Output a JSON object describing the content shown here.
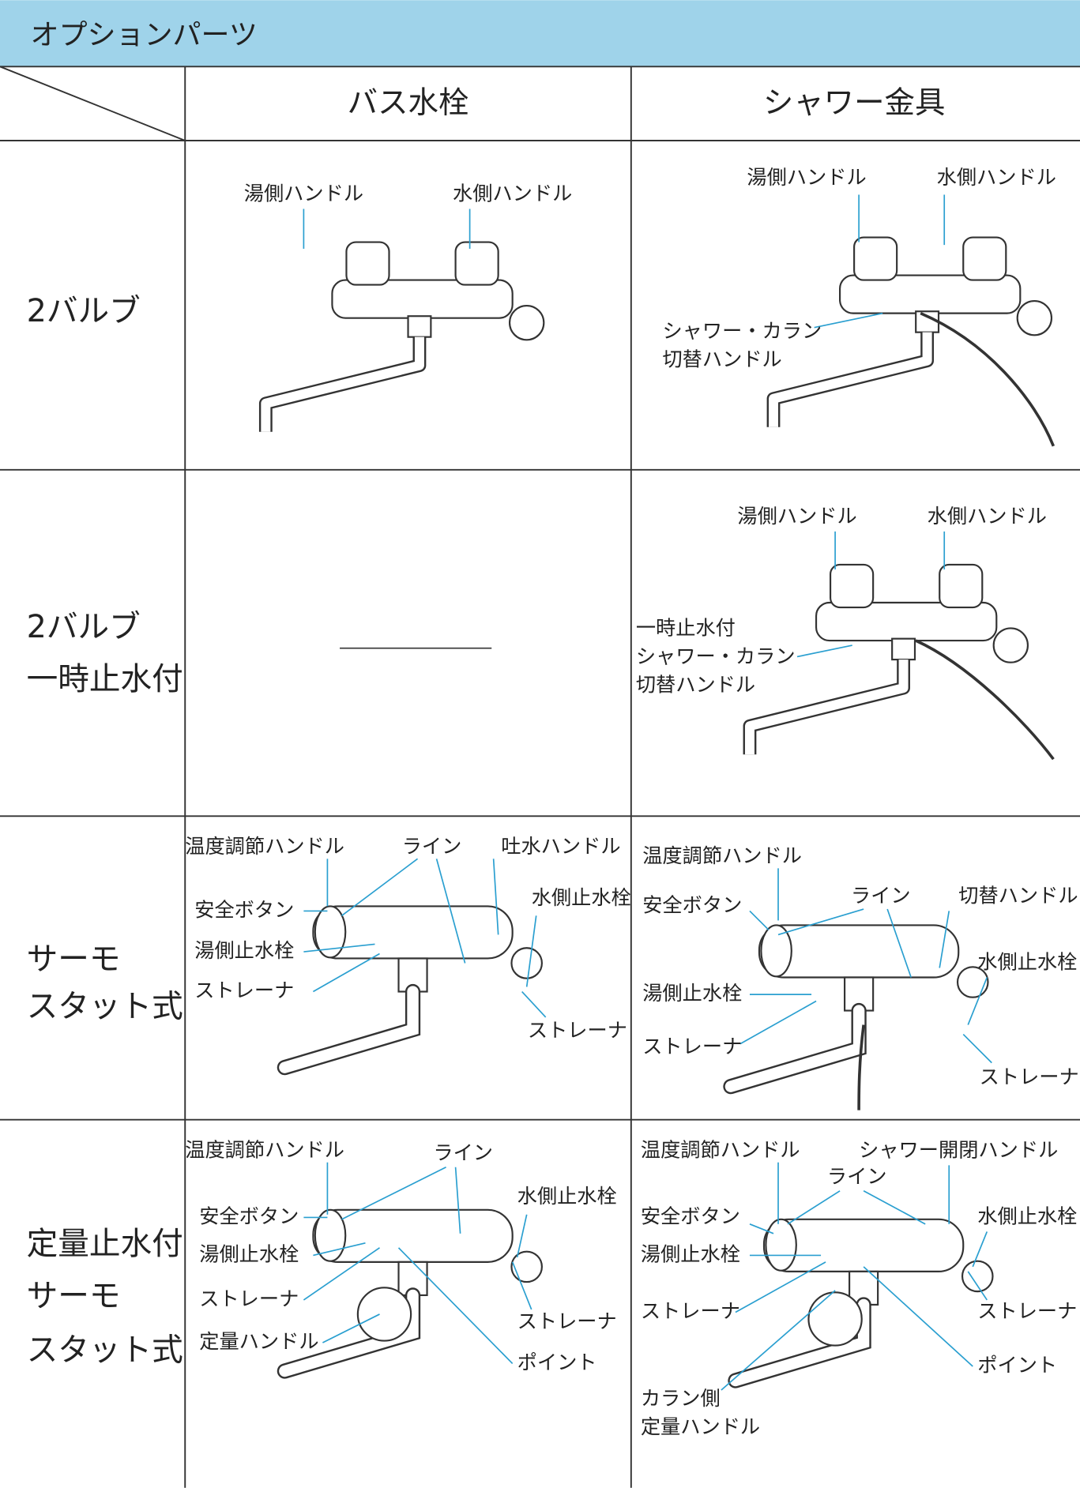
{
  "header": {
    "title": "オプションパーツ"
  },
  "table": {
    "columns": [
      "バス水栓",
      "シャワー金具"
    ],
    "rows": [
      {
        "label": [
          "2バルブ"
        ],
        "bath": [
          [
            "湯側ハンドル"
          ],
          [
            "水側ハンドル"
          ]
        ],
        "shower": [
          [
            "湯側ハンドル"
          ],
          [
            "水側ハンドル"
          ],
          [
            "シャワー・カラン",
            "切替ハンドル"
          ]
        ]
      },
      {
        "label": [
          "2バルブ",
          "一時止水付"
        ],
        "bath": [],
        "shower": [
          [
            "湯側ハンドル"
          ],
          [
            "水側ハンドル"
          ],
          [
            "一時止水付",
            "シャワー・カラン",
            "切替ハンドル"
          ]
        ]
      },
      {
        "label": [
          "サーモ",
          "スタット式"
        ],
        "bath": [
          [
            "温度調節ハンドル"
          ],
          [
            "ライン"
          ],
          [
            "吐水ハンドル"
          ],
          [
            "安全ボタン"
          ],
          [
            "水側止水栓"
          ],
          [
            "湯側止水栓"
          ],
          [
            "ストレーナ"
          ],
          [
            "ストレーナ"
          ]
        ],
        "shower": [
          [
            "温度調節ハンドル"
          ],
          [
            "安全ボタン"
          ],
          [
            "ライン"
          ],
          [
            "切替ハンドル"
          ],
          [
            "水側止水栓"
          ],
          [
            "湯側止水栓"
          ],
          [
            "ストレーナ"
          ],
          [
            "ストレーナ"
          ]
        ]
      },
      {
        "label": [
          "定量止水付",
          "サーモ",
          "スタット式"
        ],
        "bath": [
          [
            "温度調節ハンドル"
          ],
          [
            "ライン"
          ],
          [
            "安全ボタン"
          ],
          [
            "水側止水栓"
          ],
          [
            "湯側止水栓"
          ],
          [
            "ストレーナ"
          ],
          [
            "ストレーナ"
          ],
          [
            "定量ハンドル"
          ],
          [
            "ポイント"
          ]
        ],
        "shower": [
          [
            "温度調節ハンドル"
          ],
          [
            "シャワー開閉ハンドル"
          ],
          [
            "ライン"
          ],
          [
            "安全ボタン"
          ],
          [
            "水側止水栓"
          ],
          [
            "湯側止水栓"
          ],
          [
            "ストレーナ"
          ],
          [
            "ストレーナ"
          ],
          [
            "ポイント"
          ],
          [
            "カラン側",
            "定量ハンドル"
          ]
        ]
      }
    ]
  }
}
